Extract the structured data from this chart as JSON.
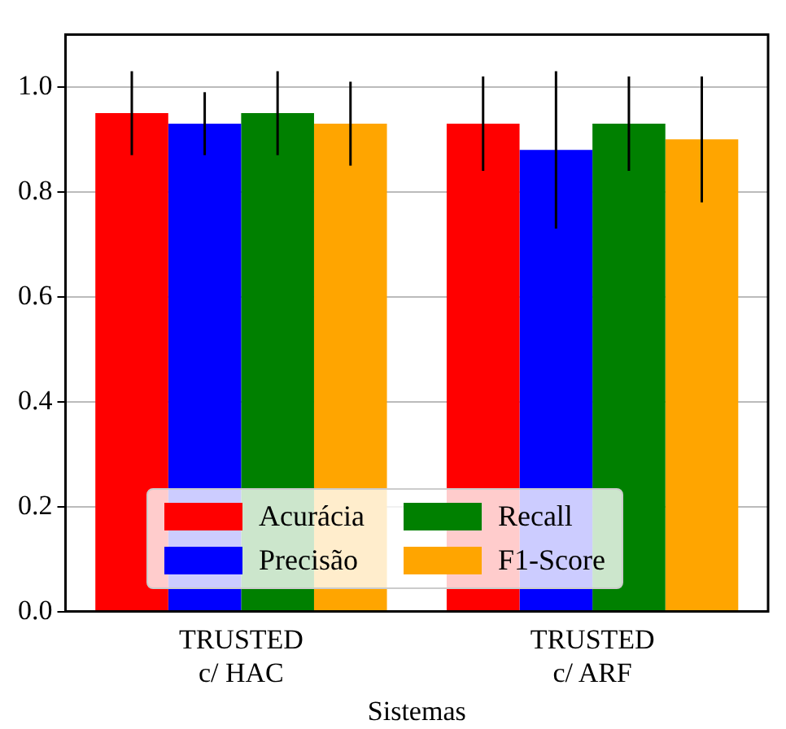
{
  "chart_data": {
    "type": "bar",
    "xlabel": "Sistemas",
    "categories": [
      "TRUSTED\nc/ HAC",
      "TRUSTED\nc/ ARF"
    ],
    "series": [
      {
        "name": "Acurácia",
        "color": "#ff0000",
        "values": [
          0.95,
          0.93
        ],
        "errors": [
          0.08,
          0.09
        ]
      },
      {
        "name": "Precisão",
        "color": "#0000ff",
        "values": [
          0.93,
          0.88
        ],
        "errors": [
          0.06,
          0.15
        ]
      },
      {
        "name": "Recall",
        "color": "#008000",
        "values": [
          0.95,
          0.93
        ],
        "errors": [
          0.08,
          0.09
        ]
      },
      {
        "name": "F1-Score",
        "color": "#ffa500",
        "values": [
          0.93,
          0.9
        ],
        "errors": [
          0.08,
          0.12
        ]
      }
    ],
    "ylim": [
      0,
      1.1
    ],
    "yticks": [
      {
        "value": 0,
        "label": "0.0"
      },
      {
        "value": 0.2,
        "label": "0.2"
      },
      {
        "value": 0.4,
        "label": "0.4"
      },
      {
        "value": 0.6,
        "label": "0.6"
      },
      {
        "value": 0.8,
        "label": "0.8"
      },
      {
        "value": 1,
        "label": "1.0"
      }
    ],
    "grid": "y",
    "legend": "bottom"
  }
}
